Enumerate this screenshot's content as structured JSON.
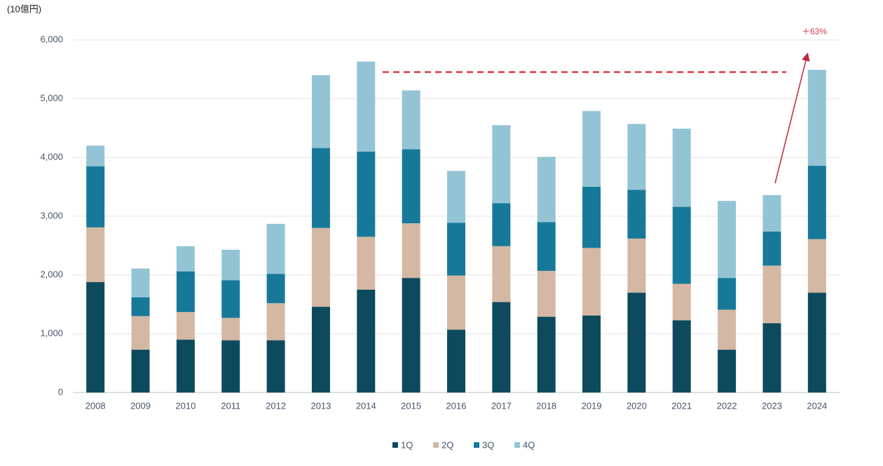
{
  "chart_data": {
    "type": "stacked_bar",
    "y_axis_label": "(10億円)",
    "annotation": "＋63%",
    "categories": [
      "2008",
      "2009",
      "2010",
      "2011",
      "2012",
      "2013",
      "2014",
      "2015",
      "2016",
      "2017",
      "2018",
      "2019",
      "2020",
      "2021",
      "2022",
      "2023",
      "2024"
    ],
    "series": [
      {
        "name": "1Q",
        "color": "#0e4a5e",
        "values": [
          1880,
          730,
          900,
          890,
          890,
          1460,
          1750,
          1950,
          1070,
          1540,
          1290,
          1310,
          1700,
          1230,
          730,
          1180,
          1700
        ]
      },
      {
        "name": "2Q",
        "color": "#d4b8a3",
        "values": [
          930,
          570,
          470,
          380,
          630,
          1340,
          900,
          930,
          920,
          950,
          780,
          1150,
          920,
          620,
          680,
          980,
          910
        ]
      },
      {
        "name": "3Q",
        "color": "#17799a",
        "values": [
          1040,
          320,
          690,
          640,
          500,
          1360,
          1450,
          1260,
          900,
          730,
          830,
          1040,
          830,
          1310,
          540,
          580,
          1250
        ]
      },
      {
        "name": "4Q",
        "color": "#93c4d6",
        "values": [
          350,
          490,
          430,
          520,
          850,
          1240,
          1530,
          1000,
          880,
          1330,
          1110,
          1290,
          1120,
          1330,
          1310,
          620,
          1630
        ]
      }
    ],
    "ylim": [
      0,
      6000
    ],
    "yticks": [
      0,
      {
        "value": 1000,
        "label": "1,000"
      },
      {
        "value": 2000,
        "label": "2,000"
      },
      {
        "value": 3000,
        "label": "3,000"
      },
      {
        "value": 4000,
        "label": "4,000"
      },
      {
        "value": 5000,
        "label": "5,000"
      },
      {
        "value": 6000,
        "label": "6,000"
      }
    ],
    "grid": true,
    "legend": "bottom"
  }
}
